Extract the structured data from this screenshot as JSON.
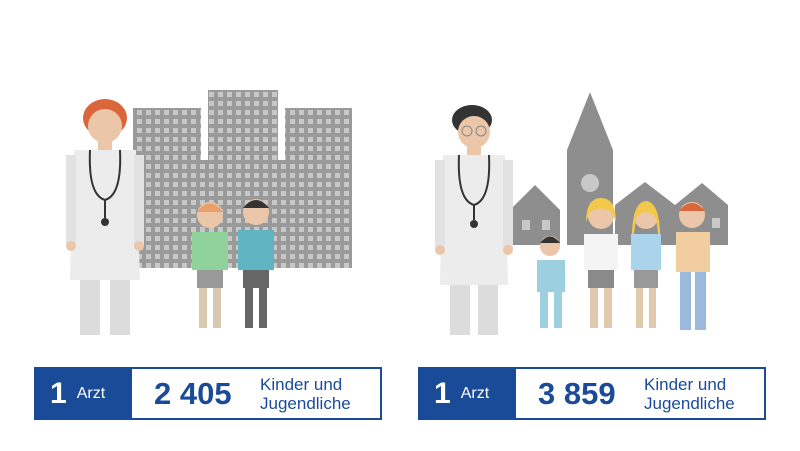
{
  "panels": [
    {
      "count": "1",
      "unit": "Arzt",
      "number": "2 405",
      "label": [
        "Kinder und",
        "Jugendliche"
      ]
    },
    {
      "count": "1",
      "unit": "Arzt",
      "number": "3 859",
      "label": [
        "Kinder und",
        "Jugendliche"
      ]
    }
  ]
}
